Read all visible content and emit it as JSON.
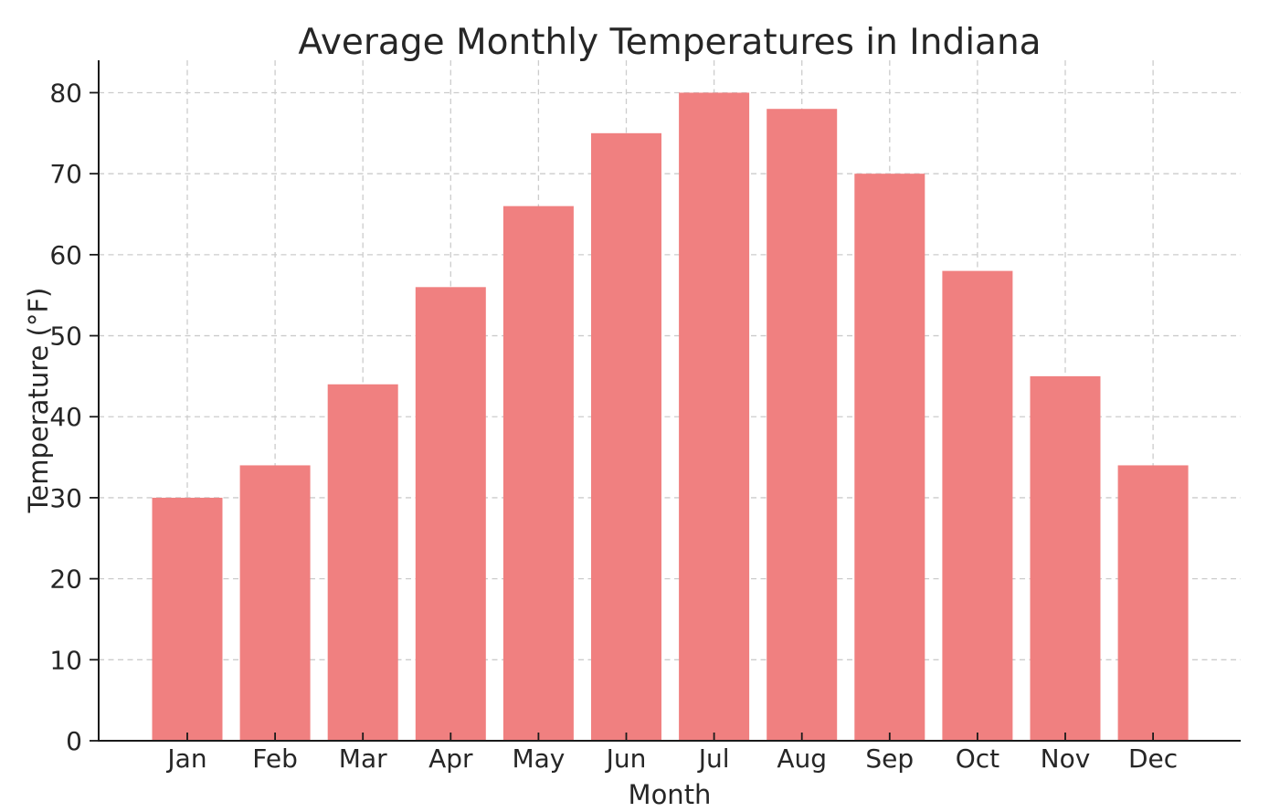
{
  "chart_data": {
    "type": "bar",
    "title": "Average Monthly Temperatures in Indiana",
    "xlabel": "Month",
    "ylabel": "Temperature (°F)",
    "categories": [
      "Jan",
      "Feb",
      "Mar",
      "Apr",
      "May",
      "Jun",
      "Jul",
      "Aug",
      "Sep",
      "Oct",
      "Nov",
      "Dec"
    ],
    "values": [
      30,
      34,
      44,
      56,
      66,
      75,
      80,
      78,
      70,
      58,
      45,
      34
    ],
    "yticks": [
      0,
      10,
      20,
      30,
      40,
      50,
      60,
      70,
      80
    ],
    "ylim": [
      0,
      84
    ],
    "grid": true,
    "grid_style": "dashed",
    "legend": "none",
    "colors": {
      "bar": "#f08080",
      "grid": "#cccccc",
      "axis": "#1a1a1a",
      "text": "#262626"
    }
  }
}
